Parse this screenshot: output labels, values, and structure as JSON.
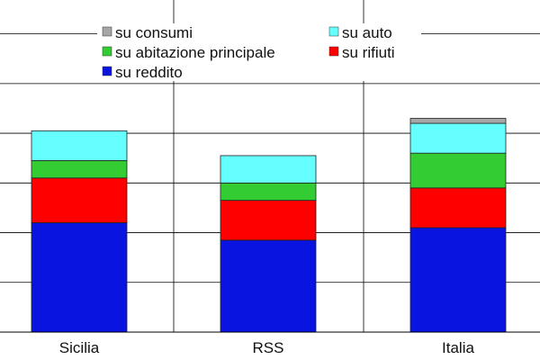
{
  "chart_data": {
    "type": "bar",
    "stacked": true,
    "categories": [
      "Sicilia",
      "RSS",
      "Italia"
    ],
    "series": [
      {
        "name": "su reddito",
        "color": "#0a14e0",
        "values": [
          2.2,
          1.85,
          2.1
        ]
      },
      {
        "name": "su rifiuti",
        "color": "#ff0000",
        "values": [
          0.9,
          0.8,
          0.8
        ]
      },
      {
        "name": "su abitazione principale",
        "color": "#33cc33",
        "values": [
          0.35,
          0.35,
          0.7
        ]
      },
      {
        "name": "su auto",
        "color": "#66ffff",
        "values": [
          0.6,
          0.55,
          0.6
        ]
      },
      {
        "name": "su consumi",
        "color": "#a6a6a6",
        "values": [
          0.0,
          0.0,
          0.1
        ]
      }
    ],
    "ylim": [
      0,
      6.5
    ],
    "grid": true,
    "legend": {
      "position": "top",
      "order": [
        "su consumi",
        "su auto",
        "su abitazione principale",
        "su rifiuti",
        "su reddito"
      ]
    },
    "title": "",
    "xlabel": "",
    "ylabel": ""
  }
}
